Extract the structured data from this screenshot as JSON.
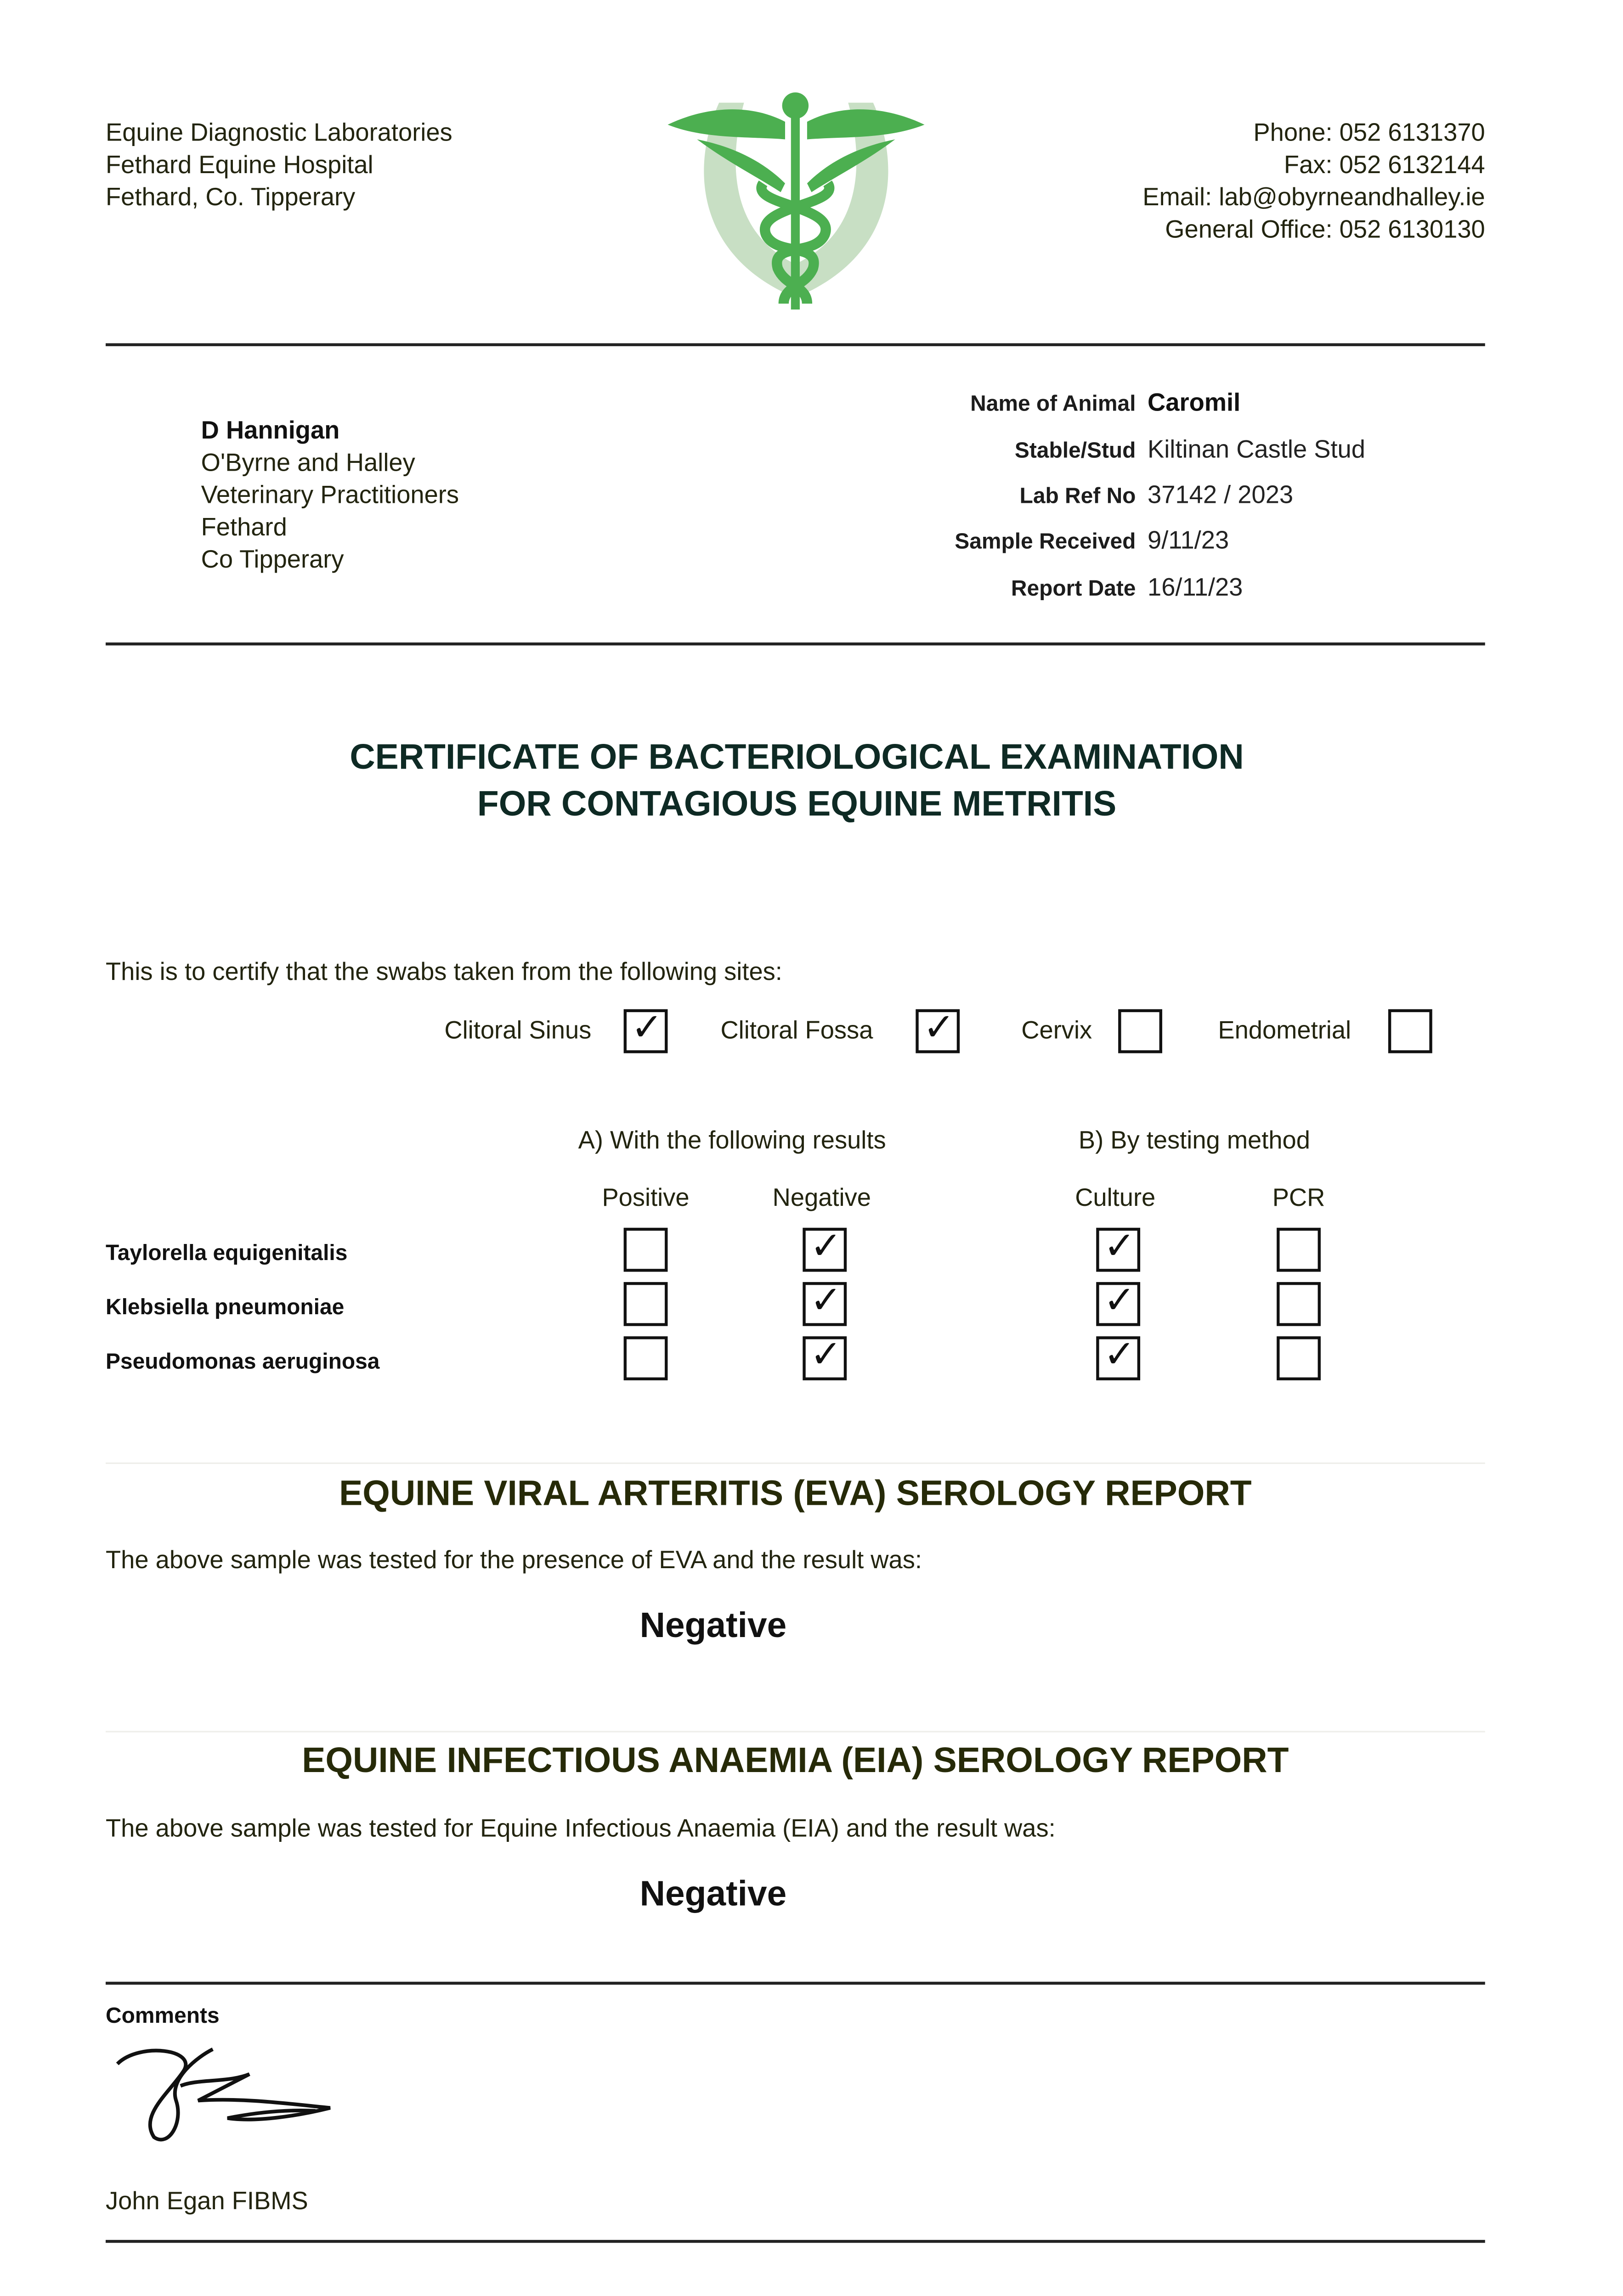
{
  "lab_address": [
    "Equine Diagnostic Laboratories",
    "Fethard Equine Hospital",
    "Fethard, Co. Tipperary"
  ],
  "contact": [
    "Phone: 052 6131370",
    "Fax: 052 6132144",
    "Email: lab@obyrneandhalley.ie",
    "General Office: 052 6130130"
  ],
  "colors": {
    "logo_green": "#4caf50",
    "horseshoe": "#c8dfc4",
    "title": "#0e2a24",
    "heading": "#262a08"
  },
  "addressee": {
    "name": "D Hannigan",
    "lines": [
      "O'Byrne and Halley",
      "Veterinary Practitioners",
      "Fethard",
      "Co Tipperary"
    ]
  },
  "fields": [
    {
      "label": "Name of Animal",
      "value": "Caromil"
    },
    {
      "label": "Stable/Stud",
      "value": "Kiltinan Castle Stud"
    },
    {
      "label": "Lab Ref No",
      "value": "37142 / 2023"
    },
    {
      "label": "Sample Received",
      "value": "9/11/23"
    },
    {
      "label": "Report Date",
      "value": "16/11/23"
    }
  ],
  "title": [
    "CERTIFICATE OF BACTERIOLOGICAL EXAMINATION",
    "FOR CONTAGIOUS EQUINE METRITIS"
  ],
  "certify_text": "This is to certify that the swabs taken from the following sites:",
  "sites": [
    {
      "label": "Clitoral Sinus",
      "checked": true
    },
    {
      "label": "Clitoral Fossa",
      "checked": true
    },
    {
      "label": "Cervix",
      "checked": false
    },
    {
      "label": "Endometrial",
      "checked": false
    }
  ],
  "section_a": "A) With the following results",
  "section_b": "B) By testing method",
  "columns": [
    "Positive",
    "Negative",
    "Culture",
    "PCR"
  ],
  "check_mark": "✓",
  "organisms": [
    {
      "name": "Taylorella equigenitalis",
      "positive": false,
      "negative": true,
      "culture": true,
      "pcr": false
    },
    {
      "name": "Klebsiella pneumoniae",
      "positive": false,
      "negative": true,
      "culture": true,
      "pcr": false
    },
    {
      "name": "Pseudomonas aeruginosa",
      "positive": false,
      "negative": true,
      "culture": true,
      "pcr": false
    }
  ],
  "eva": {
    "heading": "EQUINE VIRAL ARTERITIS (EVA) SEROLOGY REPORT",
    "text": "The above sample was tested for the presence of EVA and the result was:",
    "result": "Negative"
  },
  "eia": {
    "heading": "EQUINE INFECTIOUS ANAEMIA (EIA) SEROLOGY REPORT",
    "text": "The above sample was tested for Equine Infectious Anaemia (EIA) and the result was:",
    "result": "Negative"
  },
  "comments_label": "Comments",
  "signatory": "John Egan FIBMS"
}
